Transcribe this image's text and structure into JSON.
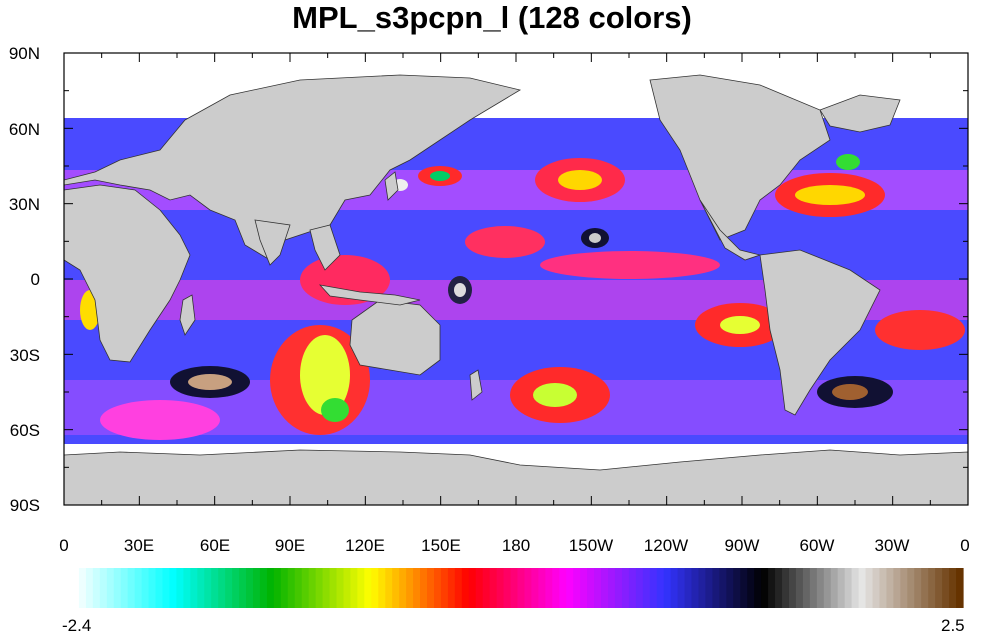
{
  "title": "MPL_s3pcpn_l (128 colors)",
  "map": {
    "projection": "cylindrical-equidistant",
    "lon_range": [
      0,
      360
    ],
    "lat_range": [
      -90,
      90
    ],
    "land_color": "#cccccc",
    "missing_color": "#ffffff",
    "lat_labels": [
      "90N",
      "60N",
      "30N",
      "0",
      "30S",
      "60S",
      "90S"
    ],
    "lon_labels": [
      "0",
      "30E",
      "60E",
      "90E",
      "120E",
      "150E",
      "180",
      "150W",
      "120W",
      "90W",
      "60W",
      "30W",
      "0"
    ]
  },
  "colorbar": {
    "min_label": "-2.4",
    "max_label": "2.5",
    "min": -2.4,
    "max": 2.5,
    "colormap": "MPL_s3pcpn_l",
    "n_colors": 128,
    "stops": [
      "#ffffff",
      "#00ffff",
      "#00b300",
      "#ffff00",
      "#ff0000",
      "#ff00ff",
      "#3333ff",
      "#000000",
      "#e6e6e6",
      "#663300"
    ]
  }
}
